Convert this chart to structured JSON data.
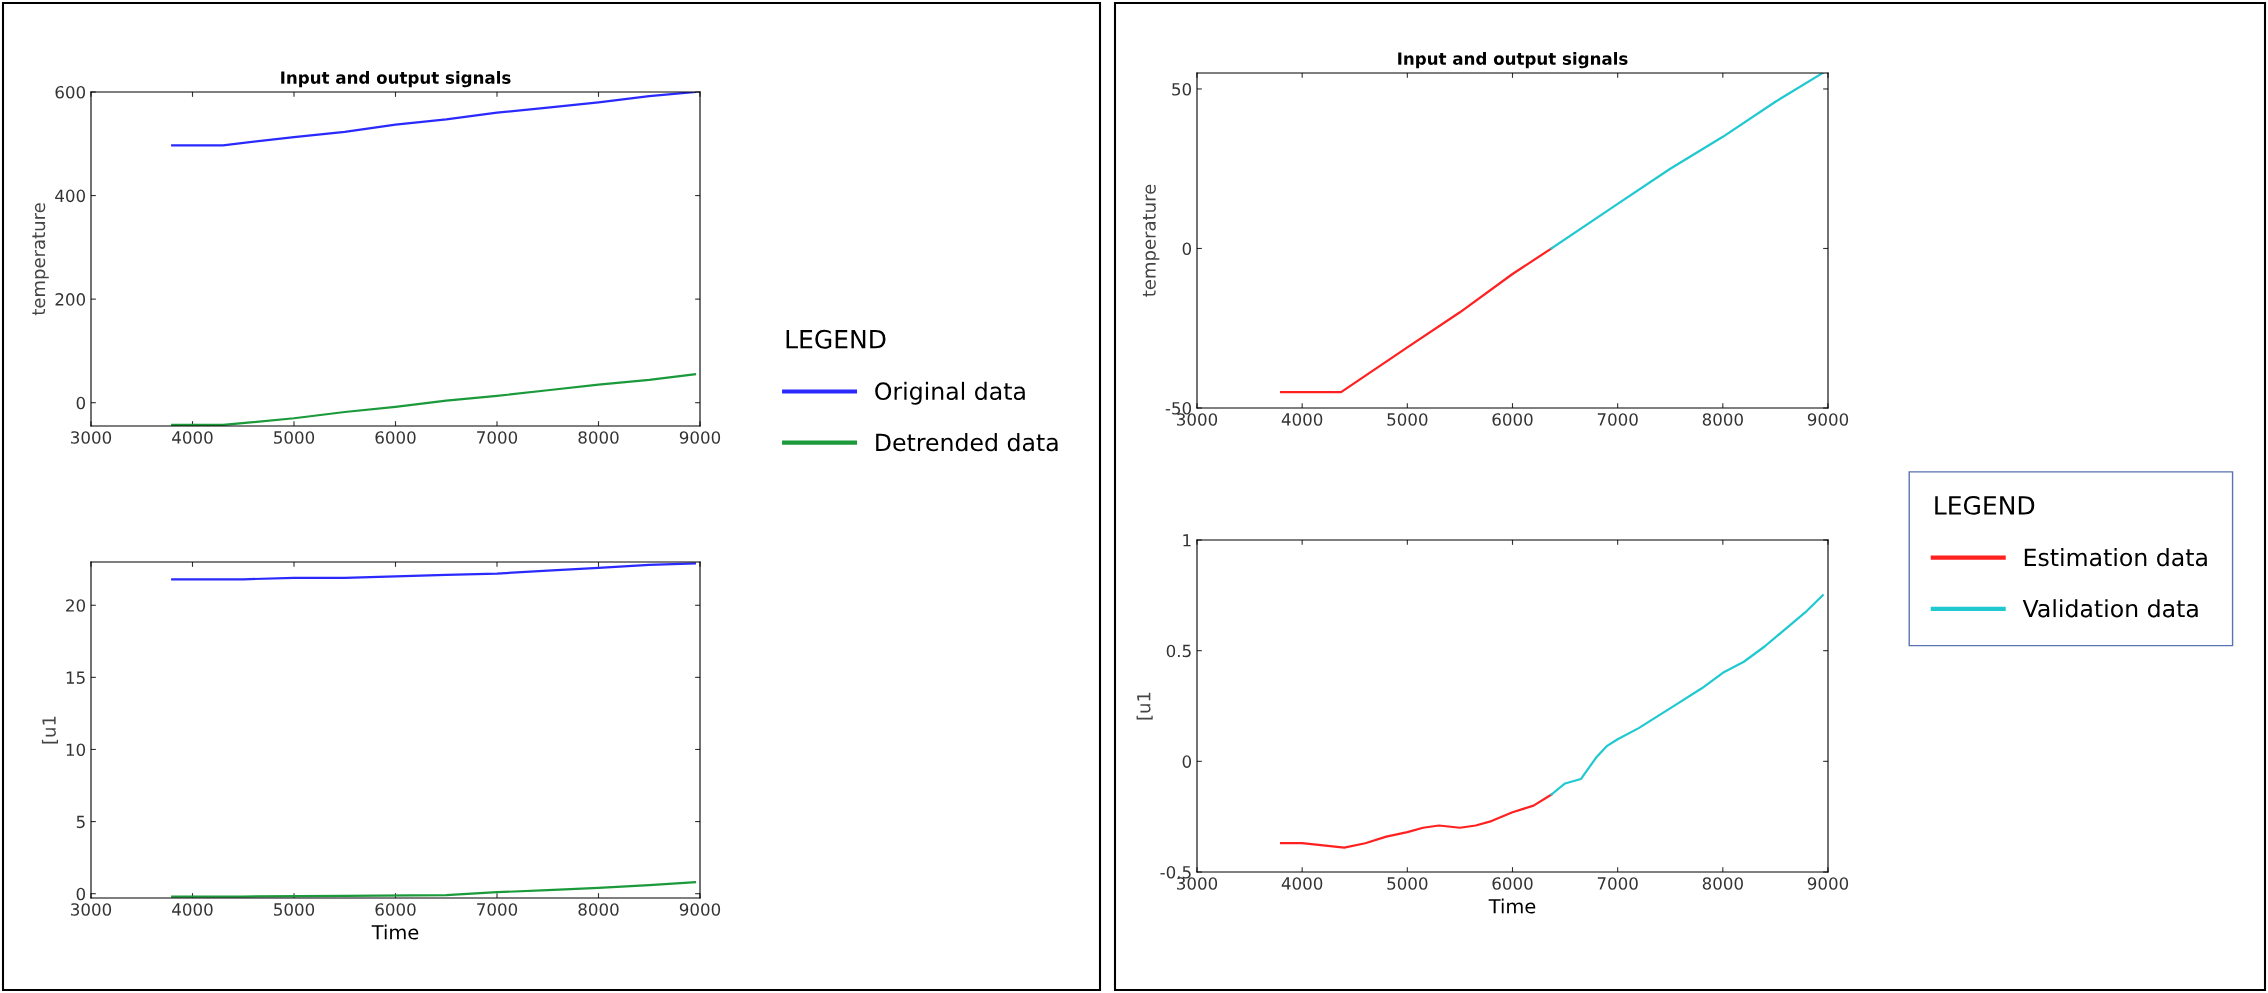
{
  "chart_data": [
    {
      "type": "line",
      "title": "Input and output signals",
      "ylabel": "temperature",
      "legend_title": "LEGEND",
      "legend": "right",
      "xlim": [
        3000,
        9000
      ],
      "xticks": [
        3000,
        4000,
        5000,
        6000,
        7000,
        8000,
        9000
      ],
      "ylim": [
        -45,
        600
      ],
      "yticks": [
        0,
        200,
        400,
        600
      ],
      "grid": false,
      "series": [
        {
          "name": "Original data",
          "color": "#2a2aff",
          "x": [
            3800,
            4300,
            5000,
            5500,
            6000,
            6500,
            7000,
            7500,
            8000,
            8500,
            8950
          ],
          "values": [
            497,
            497,
            513,
            523,
            537,
            547,
            560,
            570,
            580,
            592,
            600
          ]
        },
        {
          "name": "Detrended data",
          "color": "#1a9a3a",
          "x": [
            3800,
            4300,
            5000,
            5500,
            6000,
            6500,
            7000,
            7500,
            8000,
            8500,
            8950
          ],
          "values": [
            -43,
            -43,
            -30,
            -18,
            -8,
            4,
            13,
            24,
            35,
            44,
            55
          ]
        }
      ]
    },
    {
      "type": "line",
      "xlabel": "Time",
      "ylabel": "[u1",
      "xlim": [
        3000,
        9000
      ],
      "xticks": [
        3000,
        4000,
        5000,
        6000,
        7000,
        8000,
        9000
      ],
      "ylim": [
        -0.3,
        23
      ],
      "yticks": [
        0,
        5,
        10,
        15,
        20
      ],
      "grid": false,
      "series": [
        {
          "color": "#2a2aff",
          "x": [
            3800,
            4500,
            5000,
            5500,
            6000,
            6500,
            7000,
            7500,
            8000,
            8500,
            8950
          ],
          "values": [
            21.8,
            21.8,
            21.9,
            21.9,
            22.0,
            22.1,
            22.2,
            22.4,
            22.6,
            22.8,
            22.9
          ]
        },
        {
          "color": "#1a9a3a",
          "x": [
            3800,
            4500,
            5500,
            6500,
            7000,
            7500,
            8000,
            8500,
            8950
          ],
          "values": [
            -0.2,
            -0.2,
            -0.15,
            -0.1,
            0.1,
            0.25,
            0.4,
            0.6,
            0.8
          ]
        }
      ]
    },
    {
      "type": "line",
      "title": "Input and output signals",
      "ylabel": "temperature",
      "legend_title": "LEGEND",
      "legend": "right",
      "xlim": [
        3000,
        9000
      ],
      "xticks": [
        3000,
        4000,
        5000,
        6000,
        7000,
        8000,
        9000
      ],
      "ylim": [
        -50,
        55
      ],
      "yticks": [
        -50,
        0,
        50
      ],
      "grid": false,
      "series": [
        {
          "name": "Estimation data",
          "color": "#ff2020",
          "x": [
            3800,
            4370,
            5000,
            5500,
            6000,
            6370
          ],
          "values": [
            -45,
            -45,
            -31,
            -20,
            -8,
            0
          ]
        },
        {
          "name": "Validation data",
          "color": "#20c8d0",
          "x": [
            6370,
            7000,
            7500,
            8000,
            8500,
            8950
          ],
          "values": [
            0,
            14,
            25,
            35,
            46,
            55
          ]
        }
      ]
    },
    {
      "type": "line",
      "xlabel": "Time",
      "ylabel": "[u1",
      "xlim": [
        3000,
        9000
      ],
      "xticks": [
        3000,
        4000,
        5000,
        6000,
        7000,
        8000,
        9000
      ],
      "ylim": [
        -0.5,
        1
      ],
      "yticks": [
        -0.5,
        0,
        0.5,
        1
      ],
      "grid": false,
      "series": [
        {
          "color": "#ff2020",
          "x": [
            3800,
            4000,
            4200,
            4400,
            4600,
            4800,
            5000,
            5150,
            5300,
            5500,
            5650,
            5800,
            6000,
            6200,
            6370
          ],
          "values": [
            -0.37,
            -0.37,
            -0.38,
            -0.39,
            -0.37,
            -0.34,
            -0.32,
            -0.3,
            -0.29,
            -0.3,
            -0.29,
            -0.27,
            -0.23,
            -0.2,
            -0.15
          ]
        },
        {
          "color": "#20c8d0",
          "x": [
            6370,
            6500,
            6650,
            6800,
            6900,
            7000,
            7200,
            7400,
            7600,
            7800,
            8000,
            8200,
            8400,
            8600,
            8800,
            8950
          ],
          "values": [
            -0.15,
            -0.1,
            -0.08,
            0.02,
            0.07,
            0.1,
            0.15,
            0.21,
            0.27,
            0.33,
            0.4,
            0.45,
            0.52,
            0.6,
            0.68,
            0.75
          ]
        }
      ]
    }
  ]
}
